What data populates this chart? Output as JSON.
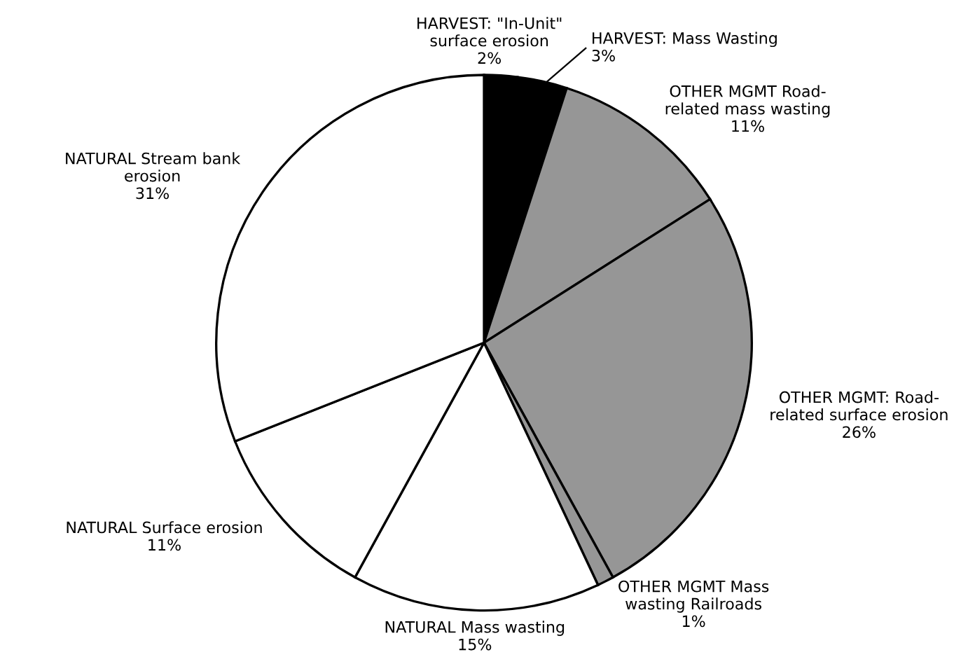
{
  "chart_data": {
    "type": "pie",
    "categories": [
      "HARVEST: \"In-Unit\"\nsurface erosion",
      "HARVEST: Mass Wasting",
      "OTHER MGMT Road-\nrelated mass wasting",
      "OTHER MGMT: Road-\nrelated surface erosion",
      "OTHER MGMT Mass\nwasting Railroads",
      "NATURAL Mass wasting",
      "NATURAL Surface erosion",
      "NATURAL Stream bank\nerosion"
    ],
    "values": [
      2,
      3,
      11,
      26,
      1,
      15,
      11,
      31
    ],
    "value_labels": [
      "2%",
      "3%",
      "11%",
      "26%",
      "1%",
      "15%",
      "11%",
      "31%"
    ],
    "colors": [
      "#000000",
      "#000000",
      "#969696",
      "#969696",
      "#969696",
      "#ffffff",
      "#ffffff",
      "#ffffff"
    ]
  }
}
